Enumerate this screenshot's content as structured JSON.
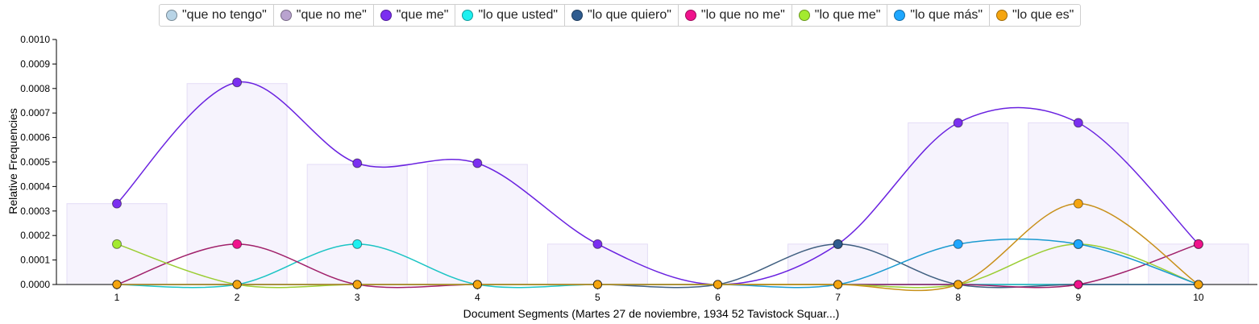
{
  "chart_data": {
    "type": "line",
    "xlabel": "Document Segments (Martes 27 de noviembre, 1934 52 Tavistock Squar...)",
    "ylabel": "Relative Frequencies",
    "x": [
      1,
      2,
      3,
      4,
      5,
      6,
      7,
      8,
      9,
      10
    ],
    "ylim": [
      0,
      0.001
    ],
    "yticks": [
      "0.0000",
      "0.0001",
      "0.0002",
      "0.0003",
      "0.0004",
      "0.0005",
      "0.0006",
      "0.0007",
      "0.0008",
      "0.0009",
      "0.0010"
    ],
    "legend_position": "top",
    "bars": [
      0.00033,
      0.00082,
      0.00049,
      0.00049,
      0.000165,
      0,
      0.000165,
      0.00066,
      0.00066,
      0.000165
    ],
    "series": [
      {
        "name": "\"que no tengo\"",
        "color": "#b8d4e6",
        "line": "#9ab8cc",
        "values": [
          0,
          0,
          0,
          0,
          0,
          0,
          0,
          0,
          0,
          0
        ]
      },
      {
        "name": "\"que no me\"",
        "color": "#b9a3cf",
        "line": "#a98fc4",
        "values": [
          0,
          0,
          0,
          0,
          0,
          0,
          0,
          0,
          0,
          0
        ]
      },
      {
        "name": "\"que me\"",
        "color": "#7b2ff0",
        "line": "#6a22e0",
        "values": [
          0.00033,
          0.000825,
          0.000495,
          0.000495,
          0.000165,
          0,
          0.000165,
          0.00066,
          0.00066,
          0.000165
        ]
      },
      {
        "name": "\"lo que usted\"",
        "color": "#1ef0f0",
        "line": "#1bc4c4",
        "values": [
          0,
          0,
          0.000165,
          0,
          0,
          0,
          0,
          0,
          0,
          0
        ]
      },
      {
        "name": "\"lo que quiero\"",
        "color": "#2f5c8f",
        "line": "#3f5f80",
        "values": [
          0,
          0,
          0,
          0,
          0,
          0,
          0.000165,
          0,
          0,
          0
        ]
      },
      {
        "name": "\"lo que no me\"",
        "color": "#f0138c",
        "line": "#a0206a",
        "values": [
          0,
          0.000165,
          0,
          0,
          0,
          0,
          0,
          0,
          0,
          0.000165
        ]
      },
      {
        "name": "\"lo que me\"",
        "color": "#a3ea2f",
        "line": "#9acd32",
        "values": [
          0.000165,
          0,
          0,
          0,
          0,
          0,
          0,
          0,
          0.000165,
          0
        ]
      },
      {
        "name": "\"lo que más\"",
        "color": "#1ea7ff",
        "line": "#1a9ad0",
        "values": [
          0,
          0,
          0,
          0,
          0,
          0,
          0,
          0.000165,
          0.000165,
          0
        ]
      },
      {
        "name": "\"lo que es\"",
        "color": "#f5a50f",
        "line": "#c8901a",
        "values": [
          0,
          0,
          0,
          0,
          0,
          0,
          0,
          0,
          0.00033,
          0
        ]
      }
    ]
  }
}
